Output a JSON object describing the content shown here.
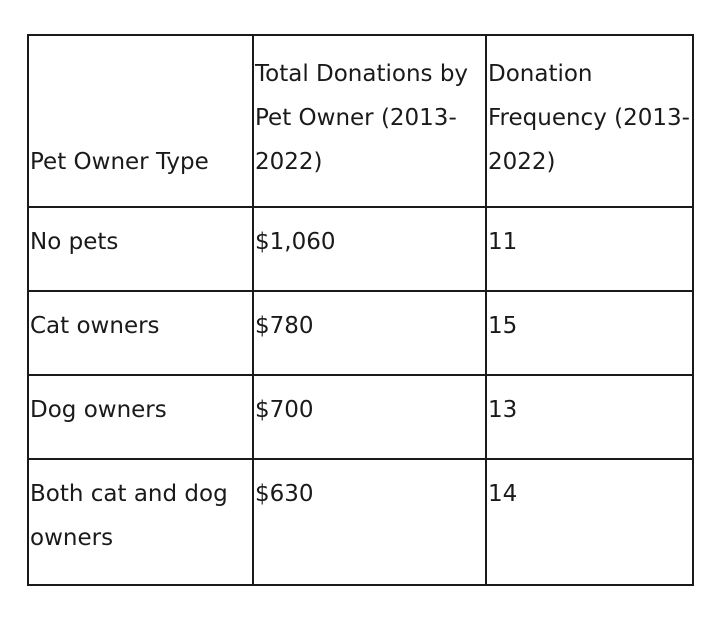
{
  "table": {
    "headers": [
      "Pet Owner Type",
      "Total Donations by Pet Owner (2013-2022)",
      "Donation Frequency (2013-2022)"
    ],
    "rows": [
      [
        "No pets",
        "$1,060",
        "11"
      ],
      [
        "Cat owners",
        "$780",
        "15"
      ],
      [
        "Dog owners",
        "$700",
        "13"
      ],
      [
        "Both cat and dog owners",
        "$630",
        "14"
      ]
    ]
  }
}
